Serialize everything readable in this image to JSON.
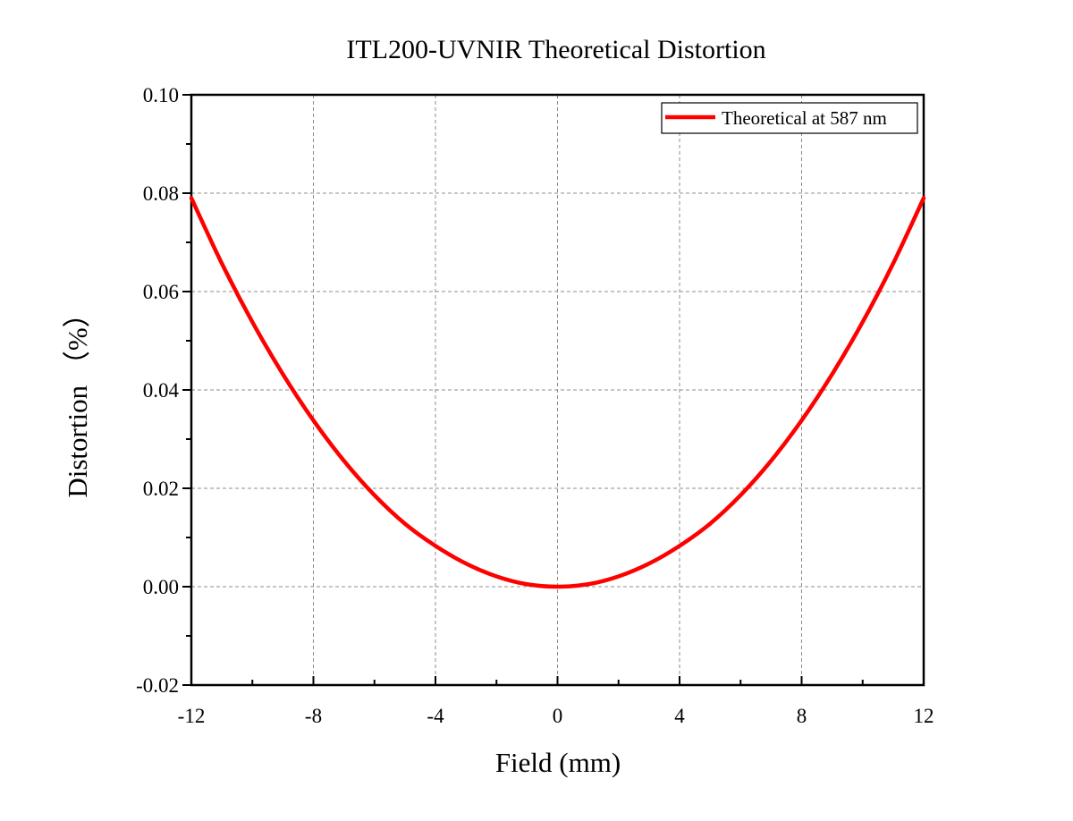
{
  "chart_data": {
    "type": "line",
    "title": "ITL200-UVNIR Theoretical Distortion",
    "xlabel": "Field (mm)",
    "ylabel": "Distortion （%）",
    "xlim": [
      -12,
      12
    ],
    "ylim": [
      -0.02,
      0.1
    ],
    "xticks": [
      -12,
      -8,
      -4,
      0,
      4,
      8,
      12
    ],
    "xtick_labels": [
      "-12",
      "-8",
      "-4",
      "0",
      "4",
      "8",
      "12"
    ],
    "yticks": [
      -0.02,
      0.0,
      0.02,
      0.04,
      0.06,
      0.08,
      0.1
    ],
    "ytick_labels": [
      "-0.02",
      "0.00",
      "0.02",
      "0.04",
      "0.06",
      "0.08",
      "0.10"
    ],
    "grid": true,
    "legend_position": "top-right",
    "series": [
      {
        "name": "Theoretical at 587 nm",
        "color": "#ff0000",
        "x": [
          -12,
          -11,
          -10,
          -9,
          -8,
          -7,
          -6,
          -5,
          -4,
          -3,
          -2,
          -1,
          0,
          1,
          2,
          3,
          4,
          5,
          6,
          7,
          8,
          9,
          10,
          11,
          12
        ],
        "y": [
          0.079,
          0.0657,
          0.0538,
          0.0432,
          0.0338,
          0.0256,
          0.0186,
          0.0128,
          0.0083,
          0.0047,
          0.0021,
          0.0005,
          0.0,
          0.0005,
          0.0021,
          0.0047,
          0.0083,
          0.0128,
          0.0186,
          0.0256,
          0.0338,
          0.0432,
          0.0538,
          0.0657,
          0.079
        ]
      }
    ]
  }
}
